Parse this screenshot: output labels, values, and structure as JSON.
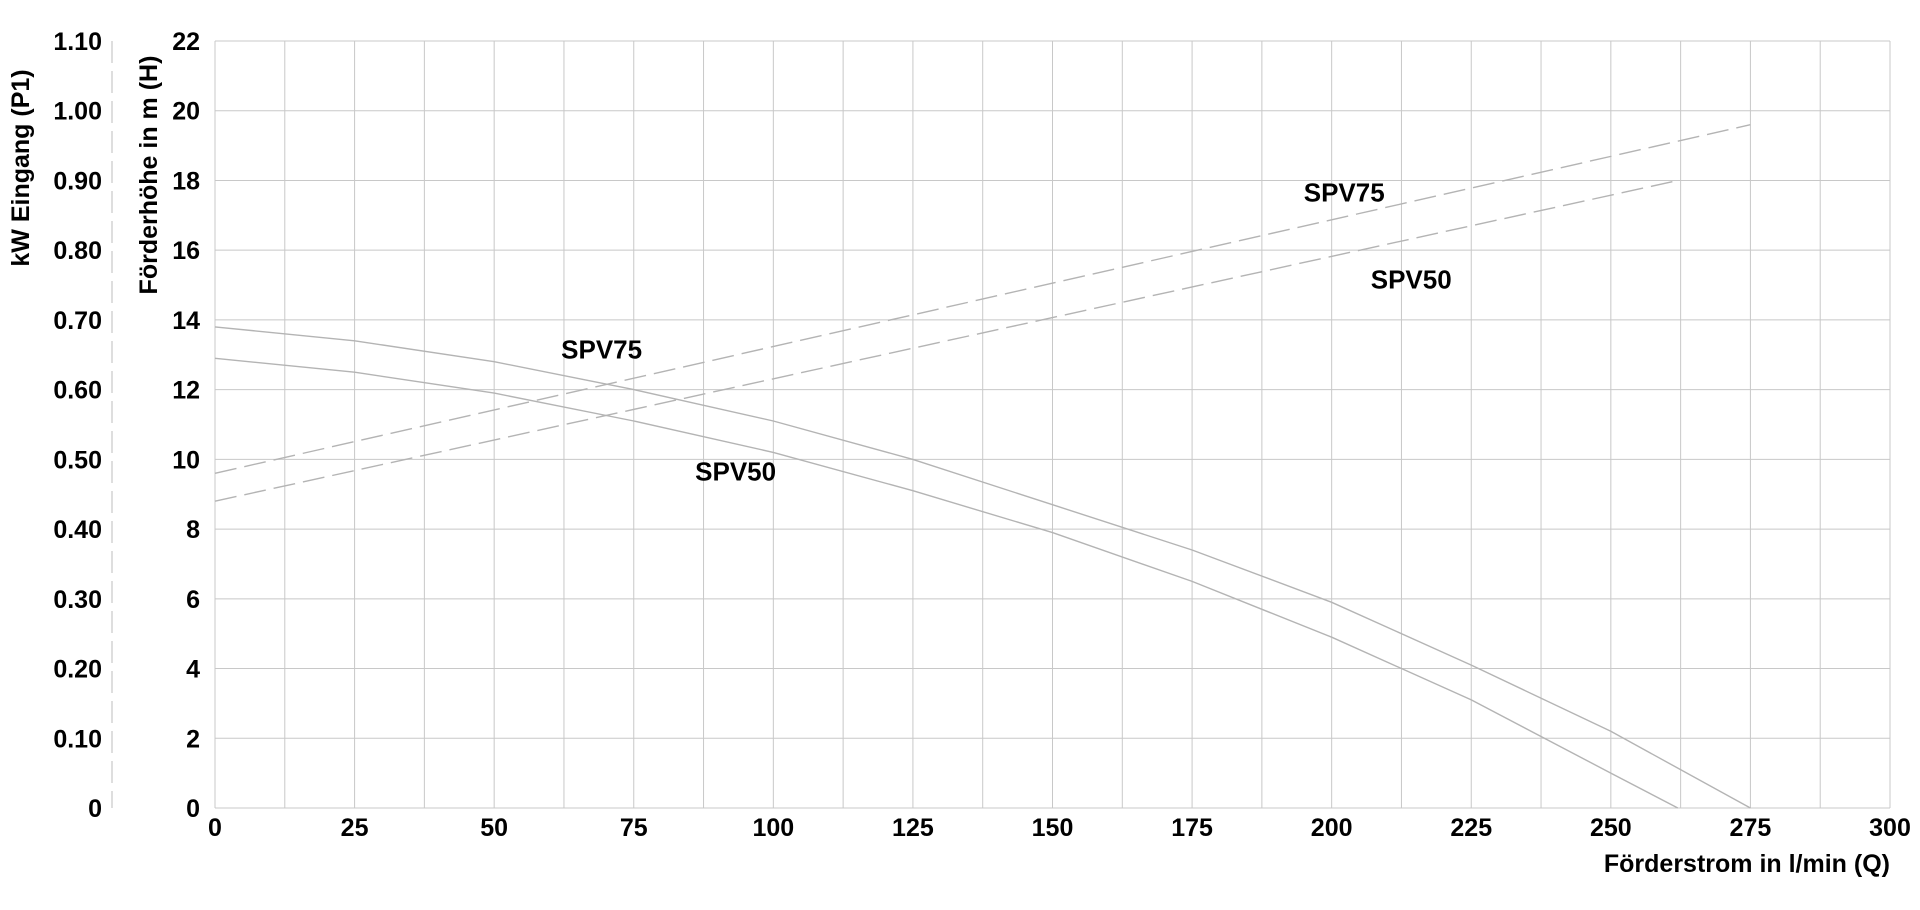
{
  "chart_data": {
    "type": "line",
    "title": "",
    "xlabel": "Förderstrom in l/min (Q)",
    "ylabel": "Förderhöhe in m (H)",
    "y2label": "kW Eingang (P1)",
    "xlim": [
      0,
      300
    ],
    "ylim": [
      0,
      22
    ],
    "y2lim": [
      0,
      1.1
    ],
    "grid": true,
    "x_ticks": [
      "0",
      "25",
      "50",
      "75",
      "100",
      "125",
      "150",
      "175",
      "200",
      "225",
      "250",
      "275",
      "300"
    ],
    "y_ticks": [
      "0",
      "2",
      "4",
      "6",
      "8",
      "10",
      "12",
      "14",
      "16",
      "18",
      "20",
      "22"
    ],
    "y2_ticks": [
      "0",
      "0.10",
      "0.20",
      "0.30",
      "0.40",
      "0.50",
      "0.60",
      "0.70",
      "0.80",
      "0.90",
      "1.00",
      "1.10"
    ],
    "series": [
      {
        "name": "SPV75",
        "axis": "left",
        "style": "solid",
        "color": "#b4b4b4",
        "x": [
          0,
          25,
          50,
          75,
          100,
          125,
          150,
          175,
          200,
          225,
          250,
          275
        ],
        "y": [
          13.8,
          13.4,
          12.8,
          12.0,
          11.1,
          10.0,
          8.7,
          7.4,
          5.9,
          4.1,
          2.2,
          0.0
        ]
      },
      {
        "name": "SPV50",
        "axis": "left",
        "style": "solid",
        "color": "#b4b4b4",
        "x": [
          0,
          25,
          50,
          75,
          100,
          125,
          150,
          175,
          200,
          225,
          250,
          262
        ],
        "y": [
          12.9,
          12.5,
          11.9,
          11.1,
          10.2,
          9.1,
          7.9,
          6.5,
          4.9,
          3.1,
          1.0,
          0.0
        ]
      },
      {
        "name": "SPV75",
        "axis": "right",
        "style": "dashed",
        "color": "#b4b4b4",
        "x": [
          0,
          275
        ],
        "y": [
          0.48,
          0.98
        ]
      },
      {
        "name": "SPV50",
        "axis": "right",
        "style": "dashed",
        "color": "#b4b4b4",
        "x": [
          0,
          262
        ],
        "y": [
          0.44,
          0.9
        ]
      }
    ],
    "annotations": [
      {
        "text": "SPV75",
        "x": 195,
        "y": 17.4
      },
      {
        "text": "SPV50",
        "x": 207,
        "y": 14.9
      },
      {
        "text": "SPV75",
        "x": 62,
        "y": 12.9
      },
      {
        "text": "SPV50",
        "x": 86,
        "y": 9.4
      }
    ]
  }
}
